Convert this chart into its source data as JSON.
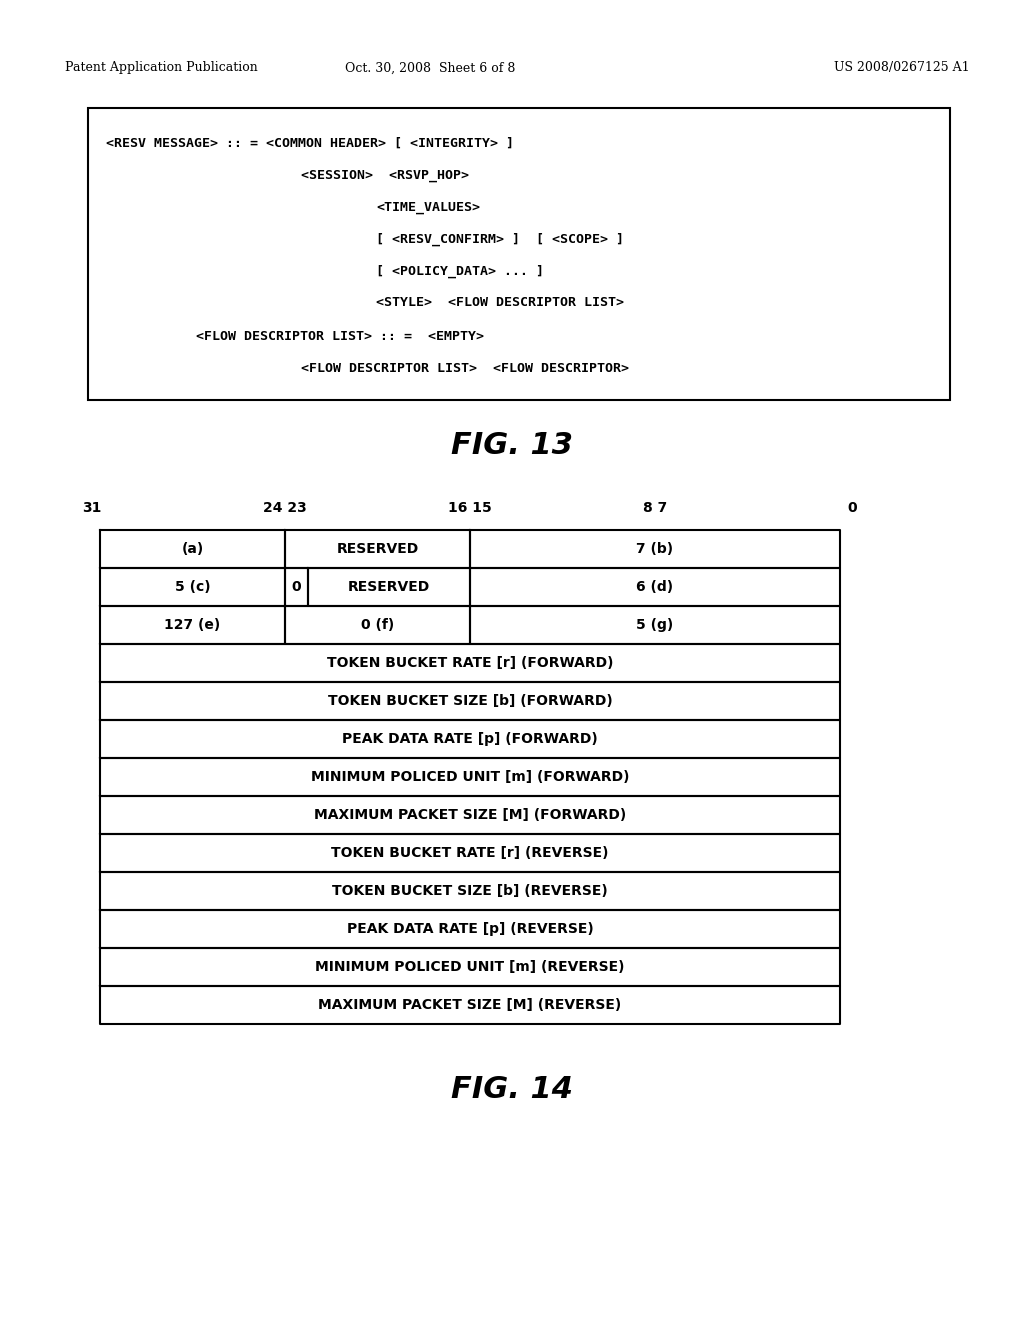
{
  "bg_color": "#ffffff",
  "header_left": "Patent Application Publication",
  "header_center": "Oct. 30, 2008  Sheet 6 of 8",
  "header_right": "US 2008/0267125 A1",
  "fig13_title": "FIG. 13",
  "fig14_title": "FIG. 14",
  "full_rows": [
    "TOKEN BUCKET RATE [r] (FORWARD)",
    "TOKEN BUCKET SIZE [b] (FORWARD)",
    "PEAK DATA RATE [p] (FORWARD)",
    "MINIMUM POLICED UNIT [m] (FORWARD)",
    "MAXIMUM PACKET SIZE [M] (FORWARD)",
    "TOKEN BUCKET RATE [r] (REVERSE)",
    "TOKEN BUCKET SIZE [b] (REVERSE)",
    "PEAK DATA RATE [p] (REVERSE)",
    "MINIMUM POLICED UNIT [m] (REVERSE)",
    "MAXIMUM PACKET SIZE [M] (REVERSE)"
  ]
}
